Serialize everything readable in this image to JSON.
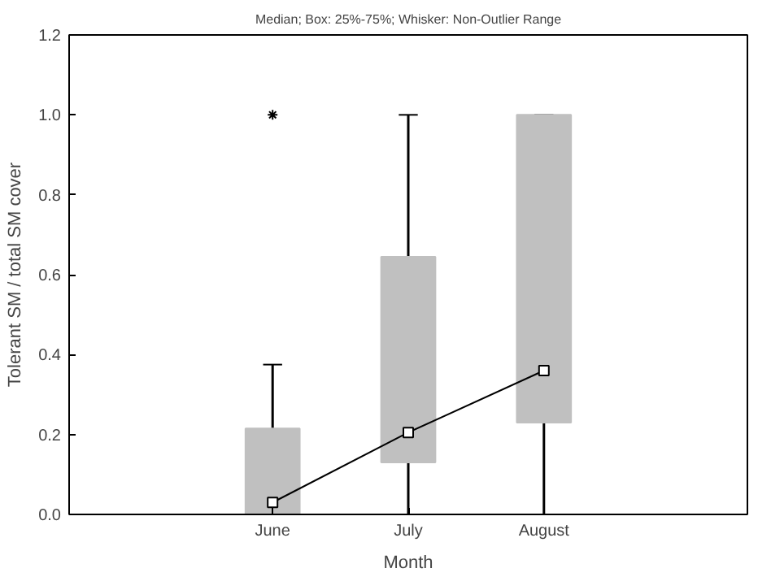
{
  "chart_data": {
    "type": "box",
    "title": "Median; Box: 25%-75%; Whisker: Non-Outlier Range",
    "xlabel": "Month",
    "ylabel": "Tolerant SM / total SM cover",
    "categories": [
      null,
      "June",
      "July",
      "August",
      null
    ],
    "ylim": [
      0,
      1.2
    ],
    "yticks": [
      {
        "value": 0,
        "label": "0.0"
      },
      0.2,
      0.4,
      0.6,
      0.8,
      {
        "value": 1,
        "label": "1.0"
      },
      1.2
    ],
    "grid": false,
    "series": [
      {
        "color": "#c0c0c0",
        "boxes": [
          null,
          {
            "low": 0,
            "q1": 0,
            "median": 0.03,
            "q3": 0.215,
            "high": 0.375,
            "outliers": [
              1.0
            ]
          },
          {
            "low": 0,
            "q1": 0.13,
            "median": 0.205,
            "q3": 0.645,
            "high": 1.0
          },
          {
            "low": 0,
            "q1": 0.23,
            "median": 0.36,
            "q3": 1.0,
            "high": 1.0
          },
          null
        ]
      },
      {
        "type": "line",
        "color": "#000000",
        "marker": "none",
        "values": [
          null,
          0.03,
          0.205,
          0.36,
          null
        ]
      }
    ]
  }
}
